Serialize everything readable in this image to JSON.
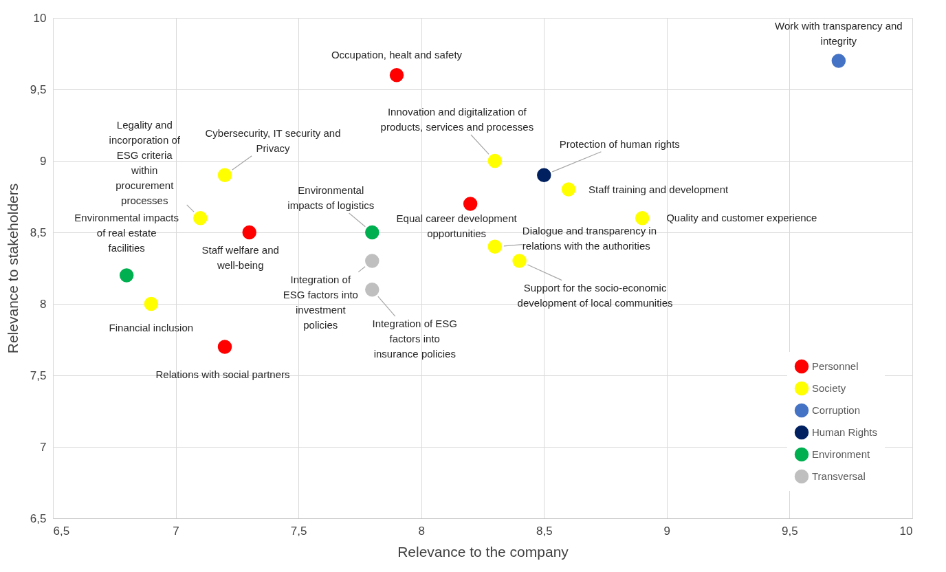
{
  "chart_data": {
    "type": "scatter",
    "xlabel": "Relevance to the company",
    "ylabel": "Relevance to stakeholders",
    "xlim": [
      6.5,
      10
    ],
    "ylim": [
      6.5,
      10
    ],
    "xticks": [
      {
        "value": 6.5,
        "label": "6,5"
      },
      7,
      {
        "value": 7.5,
        "label": "7,5"
      },
      8,
      {
        "value": 8.5,
        "label": "8,5"
      },
      9,
      {
        "value": 9.5,
        "label": "9,5"
      },
      10
    ],
    "yticks": [
      {
        "value": 6.5,
        "label": "6,5"
      },
      7,
      {
        "value": 7.5,
        "label": "7,5"
      },
      8,
      {
        "value": 8.5,
        "label": "8,5"
      },
      9,
      {
        "value": 9.5,
        "label": "9,5"
      },
      10
    ],
    "grid": true,
    "legend": "bottom right",
    "marker": "circle",
    "series": [
      {
        "name": "Personnel",
        "color": "#ff0000",
        "x": [
          7.9,
          8.2,
          7.3,
          7.2
        ],
        "values": [
          9.6,
          8.7,
          8.5,
          7.7
        ]
      },
      {
        "name": "Society",
        "color": "#ffff00",
        "x": [
          7.2,
          7.1,
          6.9,
          8.3,
          8.6,
          8.9,
          8.3,
          8.4
        ],
        "values": [
          8.9,
          8.6,
          8.0,
          9.0,
          8.8,
          8.6,
          8.4,
          8.3
        ]
      },
      {
        "name": "Corruption",
        "color": "#4472c4",
        "x": [
          9.7
        ],
        "values": [
          9.7
        ]
      },
      {
        "name": "Human Rights",
        "color": "#002060",
        "x": [
          8.5
        ],
        "values": [
          8.9
        ]
      },
      {
        "name": "Environment",
        "color": "#00b050",
        "x": [
          6.8,
          7.8
        ],
        "values": [
          8.2,
          8.5
        ]
      },
      {
        "name": "Transversal",
        "color": "#bfbfbf",
        "x": [
          7.8,
          7.8
        ],
        "values": [
          8.3,
          8.1
        ]
      }
    ],
    "annotations": [
      {
        "text": "Work with transparency and integrity",
        "x": 9.7,
        "y": 9.7
      },
      {
        "text": "Occupation, healt and safety",
        "x": 7.9,
        "y": 9.6
      },
      {
        "text": "Cybersecurity, IT security and Privacy",
        "x": 7.2,
        "y": 8.9
      },
      {
        "text": "Legality and incorporation of ESG criteria within procurement processes",
        "x": 7.1,
        "y": 8.6
      },
      {
        "text": "Innovation and digitalization of products, services and processes",
        "x": 8.3,
        "y": 9.0
      },
      {
        "text": "Protection of human rights",
        "x": 8.5,
        "y": 8.9
      },
      {
        "text": "Staff training and development",
        "x": 8.6,
        "y": 8.8
      },
      {
        "text": "Quality and customer experience",
        "x": 8.9,
        "y": 8.6
      },
      {
        "text": "Environmental impacts of logistics",
        "x": 7.8,
        "y": 8.5
      },
      {
        "text": "Equal career development opportunities",
        "x": 8.2,
        "y": 8.7
      },
      {
        "text": "Environmental impacts of real estate facilities",
        "x": 6.8,
        "y": 8.2
      },
      {
        "text": "Staff welfare and well-being",
        "x": 7.3,
        "y": 8.5
      },
      {
        "text": "Dialogue and transparency in relations with the authorities",
        "x": 8.3,
        "y": 8.4
      },
      {
        "text": "Support for the socio-economic development of local communities",
        "x": 8.4,
        "y": 8.3
      },
      {
        "text": "Integration of ESG factors into investment policies",
        "x": 7.8,
        "y": 8.3
      },
      {
        "text": "Integration of ESG factors into insurance policies",
        "x": 7.8,
        "y": 8.1
      },
      {
        "text": "Financial inclusion",
        "x": 6.9,
        "y": 8.0
      },
      {
        "text": "Relations with social partners",
        "x": 7.2,
        "y": 7.7
      }
    ]
  }
}
